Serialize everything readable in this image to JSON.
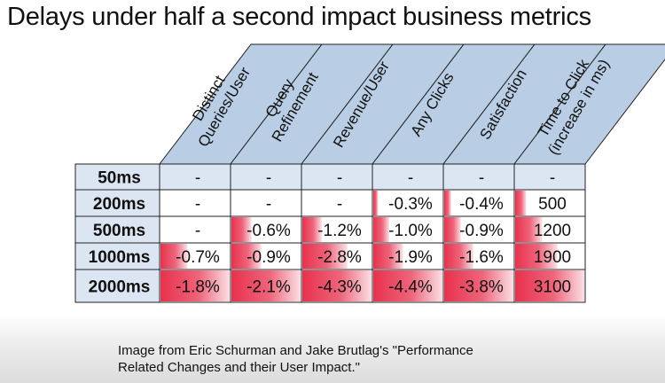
{
  "title": "Delays under half a second impact business metrics",
  "table": {
    "column_headers": [
      {
        "line1": "Distinct",
        "line2": "Queries/User"
      },
      {
        "line1": "Query",
        "line2": "Refinement"
      },
      {
        "line1": "Revenue/User",
        "line2": ""
      },
      {
        "line1": "Any Clicks",
        "line2": ""
      },
      {
        "line1": "Satisfaction",
        "line2": ""
      },
      {
        "line1": "Time to Click",
        "line2": "(increase in ms)"
      }
    ],
    "rows": [
      {
        "label": "50ms",
        "cells": [
          "-",
          "-",
          "-",
          "-",
          "-",
          "-"
        ]
      },
      {
        "label": "200ms",
        "cells": [
          "-",
          "-",
          "-",
          "-0.3%",
          "-0.4%",
          "500"
        ]
      },
      {
        "label": "500ms",
        "cells": [
          "-",
          "-0.6%",
          "-1.2%",
          "-1.0%",
          "-0.9%",
          "1200"
        ]
      },
      {
        "label": "1000ms",
        "cells": [
          "-0.7%",
          "-0.9%",
          "-2.8%",
          "-1.9%",
          "-1.6%",
          "1900"
        ]
      },
      {
        "label": "2000ms",
        "cells": [
          "-1.8%",
          "-2.1%",
          "-4.3%",
          "-4.4%",
          "-3.8%",
          "3100"
        ]
      }
    ],
    "heat": [
      [
        0,
        0,
        0,
        0,
        0,
        0
      ],
      [
        0,
        0,
        0,
        0.07,
        0.1,
        0.16
      ],
      [
        0,
        0.29,
        0.28,
        0.23,
        0.24,
        0.39
      ],
      [
        0.39,
        0.43,
        0.65,
        0.43,
        0.42,
        0.61
      ],
      [
        1.0,
        1.0,
        1.0,
        1.0,
        1.0,
        1.0
      ]
    ],
    "colors": {
      "header_fill": "#b9cde5",
      "label_fill": "#dce6f2",
      "grid": "#222222",
      "heat": "#e8314e"
    }
  },
  "caption": {
    "line1": "Image from Eric Schurman and Jake Brutlag's \"Performance",
    "line2": "Related Changes and their User Impact.\""
  }
}
